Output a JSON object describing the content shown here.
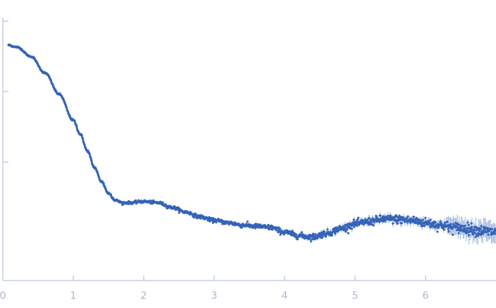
{
  "chart_data": {
    "type": "scatter",
    "title": "",
    "xlabel": "",
    "ylabel": "",
    "xlim": [
      0,
      7
    ],
    "ylim": [
      0,
      1.1
    ],
    "grid": false,
    "legend": "none",
    "x_ticks": [
      "0",
      "1",
      "2",
      "3",
      "4",
      "5",
      "6"
    ],
    "y_ticks_count": 3,
    "colors": {
      "points": "#3564b8",
      "axis": "#a9b8cc",
      "error_bars": "#9db4dc"
    },
    "series": [
      {
        "values_profile": {
          "x": [
            0.05,
            0.2,
            0.4,
            0.6,
            0.8,
            1.0,
            1.1,
            1.2,
            1.3,
            1.4,
            1.5,
            1.6,
            1.7,
            1.8,
            2.0,
            2.2,
            2.4,
            2.6,
            2.8,
            3.0,
            3.2,
            3.4,
            3.6,
            3.8,
            4.0,
            4.2,
            4.4,
            4.6,
            4.8,
            5.0,
            5.2,
            5.4,
            5.6,
            5.8,
            6.0,
            6.2,
            6.4,
            6.6,
            6.8,
            7.0
          ],
          "y": [
            1.0,
            0.99,
            0.95,
            0.88,
            0.79,
            0.68,
            0.62,
            0.55,
            0.48,
            0.42,
            0.37,
            0.34,
            0.33,
            0.33,
            0.335,
            0.33,
            0.31,
            0.29,
            0.27,
            0.255,
            0.245,
            0.235,
            0.23,
            0.225,
            0.205,
            0.19,
            0.185,
            0.2,
            0.22,
            0.24,
            0.25,
            0.26,
            0.26,
            0.255,
            0.245,
            0.235,
            0.225,
            0.22,
            0.21,
            0.205
          ]
        }
      }
    ]
  }
}
